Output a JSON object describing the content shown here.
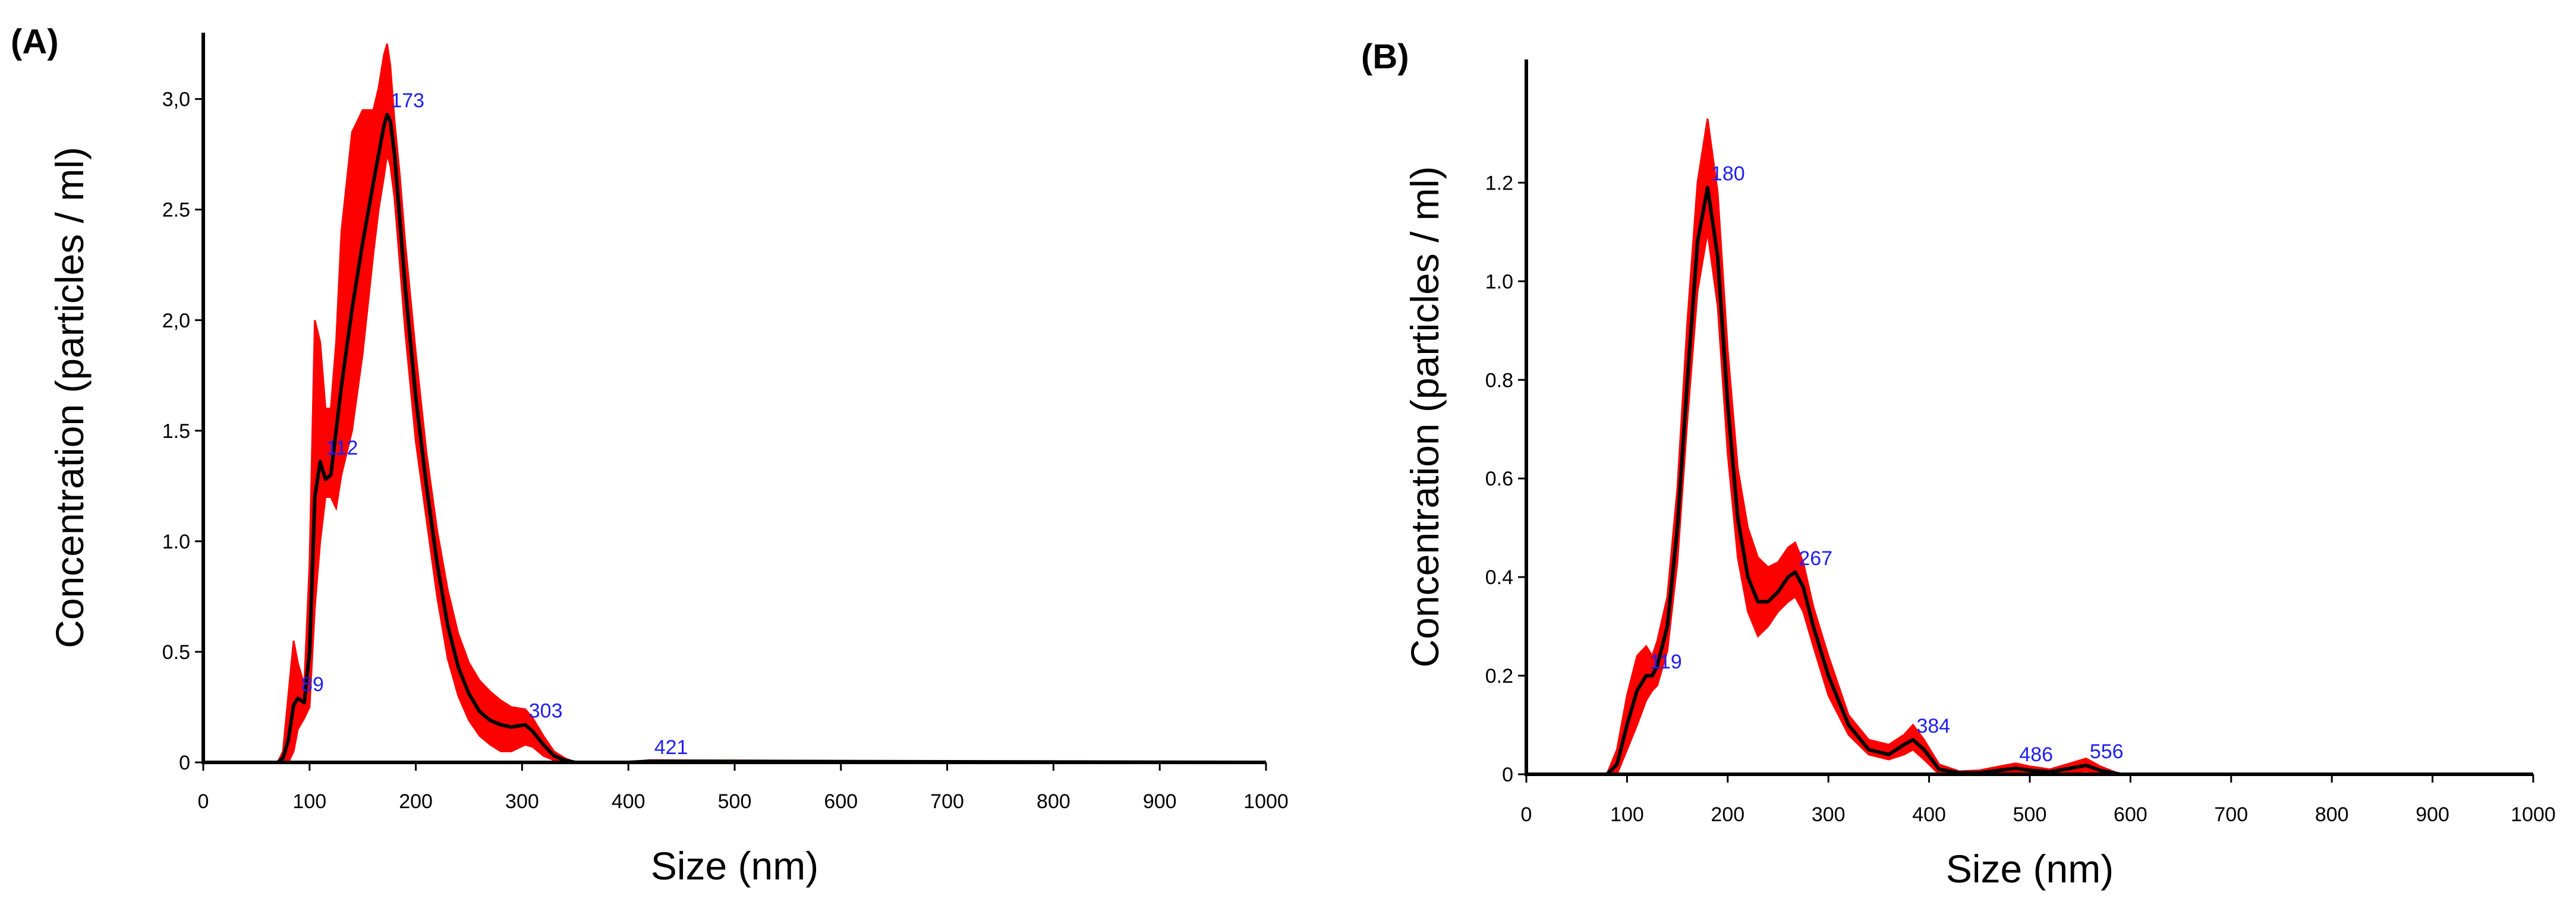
{
  "colors": {
    "band": "#ff0000",
    "mean": "#000000",
    "axis": "#000000",
    "peak_label": "#1f1ff0"
  },
  "chart_data": [
    {
      "type": "area",
      "panel_label": "(A)",
      "title": "",
      "xlabel": "Size (nm)",
      "ylabel": "Concentration (particles / ml)",
      "xlim": [
        0,
        1000
      ],
      "ylim": [
        0,
        3.3
      ],
      "x_ticks": [
        0,
        100,
        200,
        300,
        400,
        500,
        600,
        700,
        800,
        900,
        1000
      ],
      "x_tick_labels": [
        "0",
        "100",
        "200",
        "300",
        "400",
        "500",
        "600",
        "700",
        "800",
        "900",
        "1000"
      ],
      "y_ticks": [
        0,
        0.5,
        1.0,
        1.5,
        2.0,
        2.5,
        3.0
      ],
      "y_tick_labels": [
        "0",
        "0.5",
        "1.0",
        "1.5",
        "2,0",
        "2.5",
        "3,0"
      ],
      "grid": false,
      "series": [
        {
          "name": "mean",
          "x": [
            0,
            60,
            70,
            75,
            80,
            85,
            89,
            95,
            100,
            105,
            110,
            115,
            120,
            125,
            130,
            140,
            150,
            160,
            165,
            170,
            173,
            176,
            180,
            185,
            190,
            200,
            210,
            220,
            230,
            240,
            250,
            260,
            270,
            280,
            290,
            303,
            310,
            320,
            330,
            340,
            350,
            360,
            400,
            420,
            1000
          ],
          "y": [
            0,
            0,
            0,
            0.02,
            0.1,
            0.26,
            0.29,
            0.27,
            0.5,
            1.2,
            1.36,
            1.28,
            1.3,
            1.5,
            1.7,
            2.05,
            2.35,
            2.62,
            2.75,
            2.88,
            2.93,
            2.9,
            2.75,
            2.45,
            2.15,
            1.65,
            1.25,
            0.9,
            0.62,
            0.43,
            0.31,
            0.23,
            0.19,
            0.17,
            0.16,
            0.17,
            0.14,
            0.08,
            0.03,
            0.01,
            0,
            0,
            0,
            0.005,
            0
          ]
        },
        {
          "name": "error-band",
          "x": [
            0,
            60,
            70,
            75,
            80,
            85,
            89,
            95,
            100,
            105,
            110,
            115,
            120,
            125,
            130,
            140,
            150,
            160,
            165,
            170,
            173,
            176,
            180,
            185,
            190,
            200,
            210,
            220,
            230,
            240,
            250,
            260,
            270,
            280,
            290,
            303,
            310,
            320,
            330,
            340,
            350,
            360,
            400,
            420,
            1000
          ],
          "upper": [
            0,
            0,
            0,
            0.05,
            0.3,
            0.55,
            0.45,
            0.35,
            0.9,
            2.0,
            1.9,
            1.6,
            1.6,
            1.9,
            2.4,
            2.85,
            2.95,
            2.95,
            3.05,
            3.2,
            3.25,
            3.15,
            2.9,
            2.65,
            2.35,
            1.85,
            1.4,
            1.05,
            0.78,
            0.58,
            0.45,
            0.37,
            0.32,
            0.28,
            0.25,
            0.24,
            0.2,
            0.12,
            0.05,
            0.02,
            0,
            0,
            0,
            0.01,
            0
          ],
          "lower": [
            0,
            0,
            0,
            0,
            0,
            0.05,
            0.15,
            0.2,
            0.25,
            0.7,
            1.0,
            1.2,
            1.2,
            1.15,
            1.3,
            1.5,
            1.85,
            2.3,
            2.5,
            2.65,
            2.75,
            2.7,
            2.55,
            2.25,
            1.95,
            1.45,
            1.1,
            0.75,
            0.47,
            0.3,
            0.19,
            0.12,
            0.08,
            0.05,
            0.05,
            0.08,
            0.07,
            0.03,
            0.01,
            0,
            0,
            0,
            0,
            0,
            0
          ]
        }
      ],
      "peaks": [
        {
          "label": "89",
          "x": 89,
          "y": 0.29
        },
        {
          "label": "112",
          "x": 112,
          "y": 1.36
        },
        {
          "label": "173",
          "x": 173,
          "y": 2.93
        },
        {
          "label": "303",
          "x": 303,
          "y": 0.17
        },
        {
          "label": "421",
          "x": 421,
          "y": 0.005
        }
      ]
    },
    {
      "type": "area",
      "panel_label": "(B)",
      "title": "",
      "xlabel": "Size (nm)",
      "ylabel": "Concentration (particles / ml)",
      "xlim": [
        0,
        1000
      ],
      "ylim": [
        0,
        1.45
      ],
      "x_ticks": [
        0,
        100,
        200,
        300,
        400,
        500,
        600,
        700,
        800,
        900,
        1000
      ],
      "x_tick_labels": [
        "0",
        "100",
        "200",
        "300",
        "400",
        "500",
        "600",
        "700",
        "800",
        "900",
        "1000"
      ],
      "y_ticks": [
        0,
        0.2,
        0.4,
        0.6,
        0.8,
        1.0,
        1.2
      ],
      "y_tick_labels": [
        "0",
        "0.2",
        "0.4",
        "0.6",
        "0.8",
        "1.0",
        "1.2"
      ],
      "grid": false,
      "series": [
        {
          "name": "mean",
          "x": [
            0,
            70,
            80,
            90,
            100,
            110,
            119,
            125,
            130,
            140,
            150,
            160,
            170,
            180,
            190,
            200,
            210,
            220,
            230,
            240,
            250,
            260,
            267,
            275,
            285,
            300,
            320,
            340,
            360,
            375,
            384,
            395,
            410,
            430,
            450,
            470,
            486,
            500,
            520,
            540,
            556,
            570,
            590,
            1000
          ],
          "y": [
            0,
            0,
            0,
            0.02,
            0.1,
            0.17,
            0.2,
            0.2,
            0.22,
            0.3,
            0.5,
            0.8,
            1.08,
            1.19,
            1.05,
            0.75,
            0.52,
            0.4,
            0.35,
            0.35,
            0.37,
            0.4,
            0.41,
            0.38,
            0.3,
            0.2,
            0.1,
            0.05,
            0.04,
            0.06,
            0.07,
            0.05,
            0.01,
            0.003,
            0.003,
            0.008,
            0.012,
            0.008,
            0.005,
            0.012,
            0.018,
            0.008,
            0,
            0
          ]
        },
        {
          "name": "error-band",
          "x": [
            0,
            70,
            80,
            90,
            100,
            110,
            119,
            125,
            130,
            140,
            150,
            160,
            170,
            180,
            190,
            200,
            210,
            220,
            230,
            240,
            250,
            260,
            267,
            275,
            285,
            300,
            320,
            340,
            360,
            375,
            384,
            395,
            410,
            430,
            450,
            470,
            486,
            500,
            520,
            540,
            556,
            570,
            590,
            1000
          ],
          "upper": [
            0,
            0,
            0,
            0.05,
            0.16,
            0.24,
            0.26,
            0.24,
            0.27,
            0.36,
            0.58,
            0.92,
            1.2,
            1.33,
            1.18,
            0.86,
            0.62,
            0.5,
            0.44,
            0.42,
            0.43,
            0.46,
            0.47,
            0.43,
            0.34,
            0.24,
            0.12,
            0.07,
            0.06,
            0.08,
            0.1,
            0.07,
            0.02,
            0.006,
            0.008,
            0.016,
            0.022,
            0.016,
            0.01,
            0.022,
            0.032,
            0.016,
            0,
            0
          ],
          "lower": [
            0,
            0,
            0,
            0,
            0.05,
            0.1,
            0.15,
            0.17,
            0.18,
            0.25,
            0.43,
            0.72,
            0.98,
            1.1,
            0.95,
            0.65,
            0.44,
            0.33,
            0.28,
            0.3,
            0.33,
            0.35,
            0.36,
            0.33,
            0.26,
            0.16,
            0.08,
            0.04,
            0.03,
            0.04,
            0.05,
            0.03,
            0,
            0,
            0,
            0.002,
            0.004,
            0.002,
            0,
            0.004,
            0.006,
            0.002,
            0,
            0
          ]
        }
      ],
      "peaks": [
        {
          "label": "119",
          "x": 119,
          "y": 0.2
        },
        {
          "label": "180",
          "x": 180,
          "y": 1.19
        },
        {
          "label": "267",
          "x": 267,
          "y": 0.41
        },
        {
          "label": "384",
          "x": 384,
          "y": 0.07
        },
        {
          "label": "486",
          "x": 486,
          "y": 0.012
        },
        {
          "label": "556",
          "x": 556,
          "y": 0.018
        }
      ]
    }
  ]
}
